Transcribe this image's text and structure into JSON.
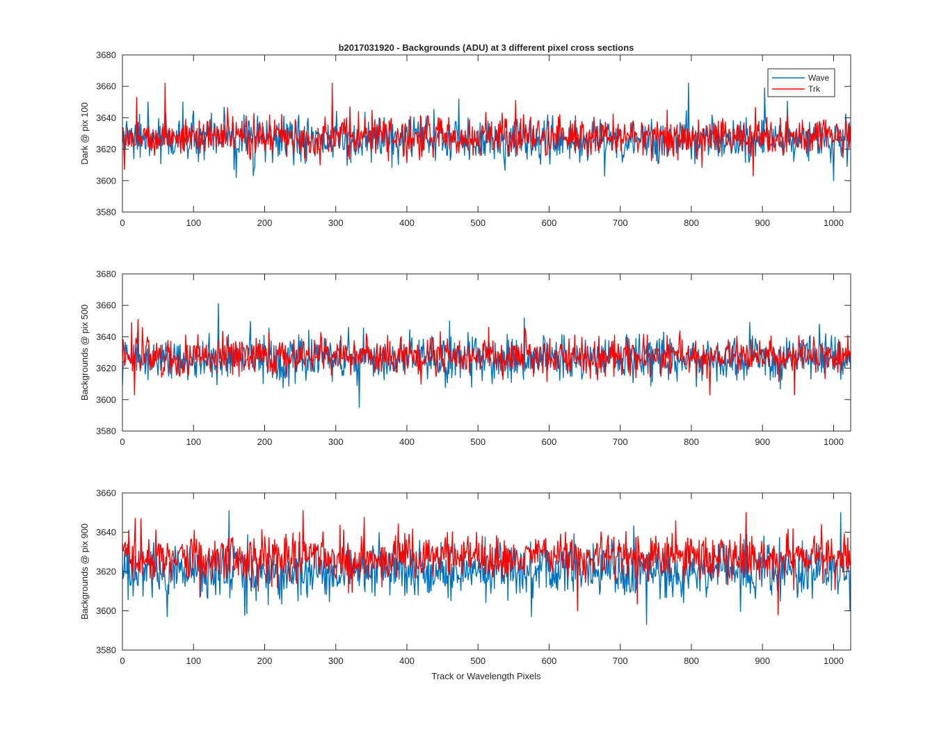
{
  "chart_data": [
    {
      "type": "line",
      "title": "b2017031920 - Backgrounds (ADU) at 3 different pixel cross sections",
      "xlabel": "",
      "ylabel": "Dark @ pix 100",
      "xlim": [
        0,
        1024
      ],
      "ylim": [
        3580,
        3680
      ],
      "xticks": [
        0,
        100,
        200,
        300,
        400,
        500,
        600,
        700,
        800,
        900,
        1000
      ],
      "yticks": [
        3580,
        3600,
        3620,
        3640,
        3660,
        3680
      ],
      "grid": false,
      "legend": "top-right",
      "series": [
        {
          "name": "Wave",
          "color": "#0072BD",
          "mean": 3626,
          "sd": 7,
          "spikes": [
            [
              796,
              3662
            ],
            [
              903,
              3659
            ],
            [
              36,
              3650
            ],
            [
              85,
              3650
            ],
            [
              1000,
              3600
            ],
            [
              160,
              3602
            ]
          ]
        },
        {
          "name": "Trk",
          "color": "#FF0000",
          "mean": 3628,
          "sd": 6,
          "spikes": [
            [
              60,
              3662
            ],
            [
              295,
              3662
            ],
            [
              20,
              3653
            ],
            [
              553,
              3651
            ],
            [
              278,
              3610
            ],
            [
              887,
              3603
            ]
          ]
        }
      ]
    },
    {
      "type": "line",
      "title": "",
      "xlabel": "",
      "ylabel": "Backgrounds @ pix 500",
      "xlim": [
        0,
        1024
      ],
      "ylim": [
        3580,
        3680
      ],
      "xticks": [
        0,
        100,
        200,
        300,
        400,
        500,
        600,
        700,
        800,
        900,
        1000
      ],
      "yticks": [
        3580,
        3600,
        3620,
        3640,
        3660,
        3680
      ],
      "grid": false,
      "series": [
        {
          "name": "Wave",
          "color": "#0072BD",
          "mean": 3626,
          "sd": 7,
          "spikes": [
            [
              135,
              3661
            ],
            [
              333,
              3595
            ],
            [
              565,
              3652
            ],
            [
              460,
              3650
            ],
            [
              980,
              3648
            ]
          ]
        },
        {
          "name": "Trk",
          "color": "#FF0000",
          "mean": 3628,
          "sd": 6,
          "spikes": [
            [
              17,
              3603
            ],
            [
              22,
              3651
            ],
            [
              13,
              3649
            ],
            [
              826,
              3603
            ],
            [
              945,
              3603
            ]
          ]
        }
      ]
    },
    {
      "type": "line",
      "title": "",
      "xlabel": "Track or Wavelength Pixels",
      "ylabel": "Backgrounds @ pix 900",
      "xlim": [
        0,
        1024
      ],
      "ylim": [
        3580,
        3660
      ],
      "xticks": [
        0,
        100,
        200,
        300,
        400,
        500,
        600,
        700,
        800,
        900,
        1000
      ],
      "yticks": [
        3580,
        3600,
        3620,
        3640,
        3660
      ],
      "grid": false,
      "series": [
        {
          "name": "Wave",
          "color": "#0072BD",
          "mean": 3620,
          "sd": 7,
          "spikes": [
            [
              63,
              3597
            ],
            [
              737,
              3593
            ],
            [
              150,
              3651
            ],
            [
              1010,
              3650
            ],
            [
              575,
              3597
            ]
          ]
        },
        {
          "name": "Trk",
          "color": "#FF0000",
          "mean": 3627,
          "sd": 6,
          "spikes": [
            [
              254,
              3651
            ],
            [
              877,
              3650
            ],
            [
              922,
              3598
            ],
            [
              640,
              3600
            ],
            [
              18,
              3647
            ]
          ]
        }
      ]
    }
  ]
}
